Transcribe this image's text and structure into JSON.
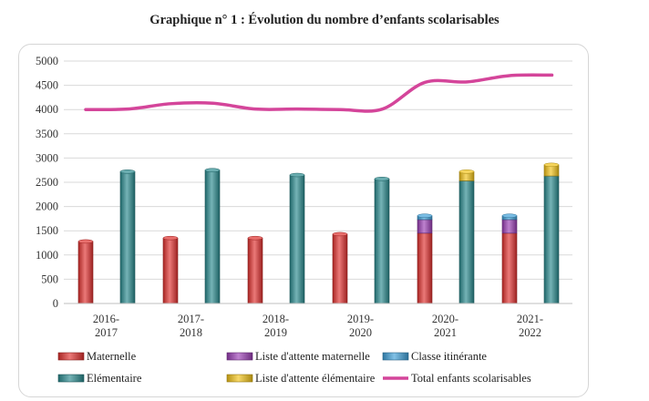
{
  "chart_data": {
    "type": "bar",
    "title": "Graphique n° 1 :  Évolution du nombre d’enfants scolarisables",
    "xlabel": "",
    "ylabel": "",
    "ylim": [
      0,
      5000
    ],
    "yticks": [
      "0",
      "500",
      "1000",
      "1500",
      "2000",
      "2500",
      "3000",
      "3500",
      "4000",
      "4500",
      "5000"
    ],
    "grid": true,
    "legend_position": "bottom",
    "categories": [
      {
        "line1": "2016-",
        "line2": "2017"
      },
      {
        "line1": "2017-",
        "line2": "2018"
      },
      {
        "line1": "2018-",
        "line2": "2019"
      },
      {
        "line1": "2019-",
        "line2": "2020"
      },
      {
        "line1": "2020-",
        "line2": "2021"
      },
      {
        "line1": "2021-",
        "line2": "2022"
      }
    ],
    "stacks": [
      {
        "id": "maternelle_stack",
        "series": [
          "maternelle",
          "attente_maternelle",
          "itinerante"
        ]
      },
      {
        "id": "elementaire_stack",
        "series": [
          "elementaire",
          "attente_elementaire"
        ]
      }
    ],
    "series": [
      {
        "id": "maternelle",
        "name": "Maternelle",
        "color": "#e0312f",
        "stack": "maternelle_stack",
        "values": [
          1280,
          1350,
          1350,
          1430,
          1450,
          1450
        ]
      },
      {
        "id": "attente_maternelle",
        "name": "Liste d'attente maternelle",
        "color": "#9b3fb5",
        "stack": "maternelle_stack",
        "values": [
          0,
          0,
          0,
          0,
          280,
          280
        ]
      },
      {
        "id": "itinerante",
        "name": "Classe itinérante",
        "color": "#3fa0d8",
        "stack": "maternelle_stack",
        "values": [
          0,
          0,
          0,
          0,
          80,
          80
        ]
      },
      {
        "id": "elementaire",
        "name": "Elémentaire",
        "color": "#2a8a8e",
        "stack": "elementaire_stack",
        "values": [
          2720,
          2750,
          2650,
          2570,
          2530,
          2630
        ]
      },
      {
        "id": "attente_elementaire",
        "name": "Liste d'attente élémentaire",
        "color": "#f2c318",
        "stack": "elementaire_stack",
        "values": [
          0,
          0,
          0,
          0,
          190,
          230
        ]
      },
      {
        "id": "total",
        "name": "Total enfants scolarisables",
        "color": "#d4459a",
        "type": "line",
        "x": [
          0,
          0.5,
          1,
          1.5,
          2,
          2.5,
          3,
          3.5,
          4,
          4.5,
          5,
          5.5
        ],
        "values": [
          4000,
          4010,
          4120,
          4130,
          4010,
          4010,
          4000,
          4010,
          4560,
          4570,
          4700,
          4710
        ]
      }
    ],
    "legend": [
      {
        "series": "maternelle",
        "label": "Maternelle"
      },
      {
        "series": "attente_maternelle",
        "label": "Liste d'attente maternelle"
      },
      {
        "series": "itinerante",
        "label": "Classe itinérante"
      },
      {
        "series": "elementaire",
        "label": "Elémentaire"
      },
      {
        "series": "attente_elementaire",
        "label": "Liste d'attente élémentaire"
      },
      {
        "series": "total",
        "label": "Total enfants scolarisables"
      }
    ]
  }
}
